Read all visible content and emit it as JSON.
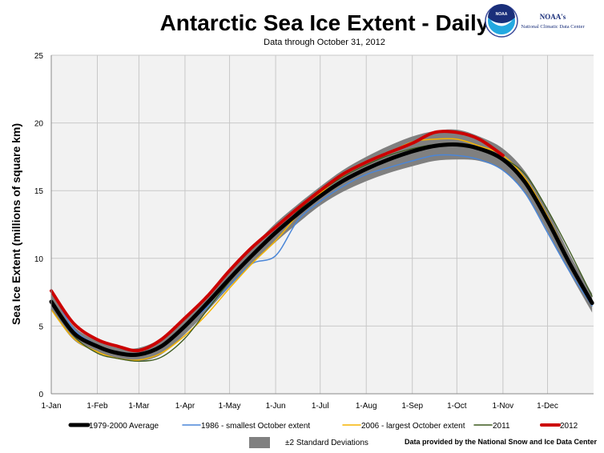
{
  "header": {
    "org_name": "NOAA's",
    "org_subtitle": "National Climatic Data Center",
    "logo_text": "NOAA"
  },
  "credit": "Data provided by the National Snow and Ice Data Center",
  "chart_data": {
    "type": "line",
    "title": "Antarctic Sea Ice Extent - Daily",
    "subtitle": "Data through October 31, 2012",
    "ylabel": "Sea Ice Extent (millions of square km)",
    "xlabel": "",
    "ylim": [
      0,
      25
    ],
    "yticks": [
      0,
      5,
      10,
      15,
      20,
      25
    ],
    "xticks": [
      "1-Jan",
      "1-Feb",
      "1-Mar",
      "1-Apr",
      "1-May",
      "1-Jun",
      "1-Jul",
      "1-Aug",
      "1-Sep",
      "1-Oct",
      "1-Nov",
      "1-Dec"
    ],
    "xtick_days": [
      0,
      31,
      59,
      90,
      120,
      151,
      181,
      212,
      243,
      273,
      304,
      334
    ],
    "grid": true,
    "legend_placement": "bottom",
    "x_day_of_year": [
      0,
      15,
      31,
      45,
      59,
      74,
      90,
      105,
      120,
      135,
      151,
      166,
      181,
      196,
      212,
      227,
      243,
      258,
      273,
      288,
      304,
      319,
      334,
      349,
      364
    ],
    "band": {
      "name": "±2 Standard Deviations",
      "color": "#808080",
      "center_series": "1979-2000 Average",
      "half_width": [
        0.6,
        0.5,
        0.4,
        0.4,
        0.5,
        0.6,
        0.6,
        0.6,
        0.6,
        0.6,
        0.7,
        0.7,
        0.7,
        0.8,
        0.9,
        1.0,
        1.1,
        1.1,
        1.1,
        0.9,
        0.8,
        0.8,
        0.8,
        0.7,
        0.7
      ]
    },
    "series": [
      {
        "name": "1979-2000 Average",
        "color": "#000000",
        "width": 5,
        "values": [
          6.8,
          4.5,
          3.5,
          3.0,
          2.9,
          3.5,
          5.0,
          6.7,
          8.5,
          10.2,
          11.9,
          13.3,
          14.6,
          15.7,
          16.6,
          17.3,
          17.9,
          18.3,
          18.4,
          18.1,
          17.3,
          15.6,
          12.8,
          9.6,
          6.7
        ]
      },
      {
        "name": "1986 - smallest October extent",
        "color": "#4a86d8",
        "width": 1.5,
        "values": [
          7.7,
          4.8,
          3.6,
          3.1,
          3.0,
          3.6,
          5.0,
          6.4,
          8.0,
          9.6,
          10.2,
          12.8,
          14.2,
          15.3,
          16.2,
          16.7,
          17.2,
          17.6,
          17.6,
          17.3,
          16.5,
          14.8,
          11.9,
          9.0,
          6.5
        ]
      },
      {
        "name": "2006 - largest October extent",
        "color": "#f5b400",
        "width": 1.5,
        "values": [
          6.2,
          4.1,
          3.1,
          2.6,
          2.5,
          3.0,
          4.3,
          5.9,
          7.8,
          9.6,
          11.3,
          13.2,
          14.8,
          16.1,
          17.1,
          17.8,
          18.6,
          18.8,
          18.8,
          18.3,
          17.6,
          15.9,
          13.1,
          9.8,
          6.8
        ]
      },
      {
        "name": "2011",
        "color": "#3d5a1e",
        "width": 1.3,
        "values": [
          6.9,
          4.3,
          3.0,
          2.6,
          2.4,
          2.7,
          4.1,
          6.2,
          8.3,
          10.1,
          11.8,
          13.5,
          14.9,
          16.0,
          16.9,
          17.6,
          18.1,
          18.4,
          18.5,
          18.2,
          17.4,
          16.2,
          13.6,
          10.5,
          7.2
        ]
      },
      {
        "name": "2012",
        "color": "#cc0000",
        "width": 4,
        "values": [
          7.6,
          5.2,
          4.0,
          3.5,
          3.2,
          4.0,
          5.6,
          7.2,
          9.1,
          10.8,
          12.3,
          13.7,
          15.0,
          16.2,
          17.1,
          17.8,
          18.5,
          19.3,
          19.3,
          18.8,
          17.6,
          null,
          null,
          null,
          null
        ]
      }
    ]
  }
}
